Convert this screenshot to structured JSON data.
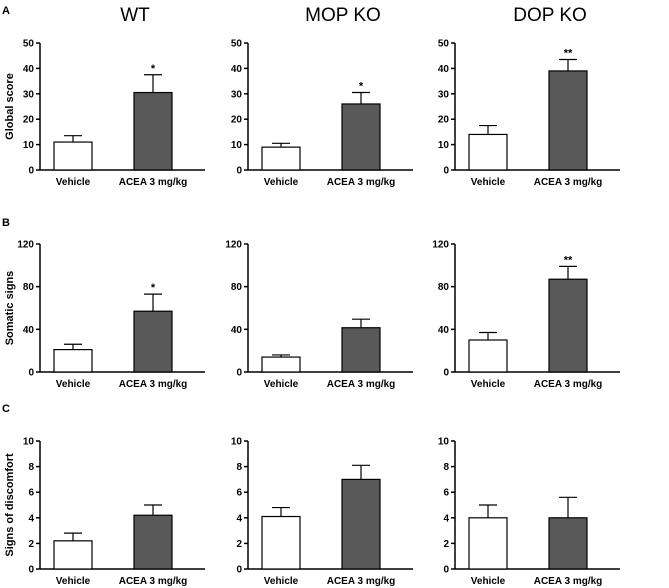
{
  "figure": {
    "panel_letters": [
      "A",
      "B",
      "C"
    ],
    "column_titles": [
      "WT",
      "MOP KO",
      "DOP KO"
    ]
  },
  "colors": {
    "vehicle_fill": "#ffffff",
    "acea_fill": "#595959",
    "axis": "#000000"
  },
  "chart_data": [
    {
      "type": "bar",
      "row": 0,
      "col": 0,
      "title": "WT",
      "ylabel": "Global score",
      "ylim": [
        0,
        50
      ],
      "yticks": [
        0,
        10,
        20,
        30,
        40,
        50
      ],
      "categories": [
        "Vehicle",
        "ACEA 3 mg/kg"
      ],
      "values": [
        11,
        30.5
      ],
      "errors": [
        2.5,
        7
      ],
      "significance": [
        "",
        "*"
      ]
    },
    {
      "type": "bar",
      "row": 0,
      "col": 1,
      "title": "MOP KO",
      "ylabel": "",
      "ylim": [
        0,
        50
      ],
      "yticks": [
        0,
        10,
        20,
        30,
        40,
        50
      ],
      "categories": [
        "Vehicle",
        "ACEA 3 mg/kg"
      ],
      "values": [
        9,
        26
      ],
      "errors": [
        1.5,
        4.5
      ],
      "significance": [
        "",
        "*"
      ]
    },
    {
      "type": "bar",
      "row": 0,
      "col": 2,
      "title": "DOP KO",
      "ylabel": "",
      "ylim": [
        0,
        50
      ],
      "yticks": [
        0,
        10,
        20,
        30,
        40,
        50
      ],
      "categories": [
        "Vehicle",
        "ACEA 3 mg/kg"
      ],
      "values": [
        14,
        39
      ],
      "errors": [
        3.5,
        4.5
      ],
      "significance": [
        "",
        "**"
      ]
    },
    {
      "type": "bar",
      "row": 1,
      "col": 0,
      "ylabel": "Somatic signs",
      "ylim": [
        0,
        120
      ],
      "yticks": [
        0,
        40,
        80,
        120
      ],
      "categories": [
        "Vehicle",
        "ACEA 3 mg/kg"
      ],
      "values": [
        21,
        57
      ],
      "errors": [
        5,
        16
      ],
      "significance": [
        "",
        "*"
      ]
    },
    {
      "type": "bar",
      "row": 1,
      "col": 1,
      "ylabel": "",
      "ylim": [
        0,
        120
      ],
      "yticks": [
        0,
        40,
        80,
        120
      ],
      "categories": [
        "Vehicle",
        "ACEA 3 mg/kg"
      ],
      "values": [
        14,
        41.5
      ],
      "errors": [
        2,
        8
      ],
      "significance": [
        "",
        ""
      ]
    },
    {
      "type": "bar",
      "row": 1,
      "col": 2,
      "ylabel": "",
      "ylim": [
        0,
        120
      ],
      "yticks": [
        0,
        40,
        80,
        120
      ],
      "categories": [
        "Vehicle",
        "ACEA 3 mg/kg"
      ],
      "values": [
        30,
        87
      ],
      "errors": [
        7,
        12
      ],
      "significance": [
        "",
        "**"
      ]
    },
    {
      "type": "bar",
      "row": 2,
      "col": 0,
      "ylabel": "Signs of discomfort",
      "ylim": [
        0,
        10
      ],
      "yticks": [
        0,
        2,
        4,
        6,
        8,
        10
      ],
      "categories": [
        "Vehicle",
        "ACEA 3 mg/kg"
      ],
      "values": [
        2.2,
        4.2
      ],
      "errors": [
        0.6,
        0.8
      ],
      "significance": [
        "",
        ""
      ]
    },
    {
      "type": "bar",
      "row": 2,
      "col": 1,
      "ylabel": "",
      "ylim": [
        0,
        10
      ],
      "yticks": [
        0,
        2,
        4,
        6,
        8,
        10
      ],
      "categories": [
        "Vehicle",
        "ACEA 3 mg/kg"
      ],
      "values": [
        4.1,
        7
      ],
      "errors": [
        0.7,
        1.1
      ],
      "significance": [
        "",
        ""
      ]
    },
    {
      "type": "bar",
      "row": 2,
      "col": 2,
      "ylabel": "",
      "ylim": [
        0,
        10
      ],
      "yticks": [
        0,
        2,
        4,
        6,
        8,
        10
      ],
      "categories": [
        "Vehicle",
        "ACEA 3 mg/kg"
      ],
      "values": [
        4,
        4
      ],
      "errors": [
        1,
        1.6
      ],
      "significance": [
        "",
        ""
      ]
    }
  ]
}
